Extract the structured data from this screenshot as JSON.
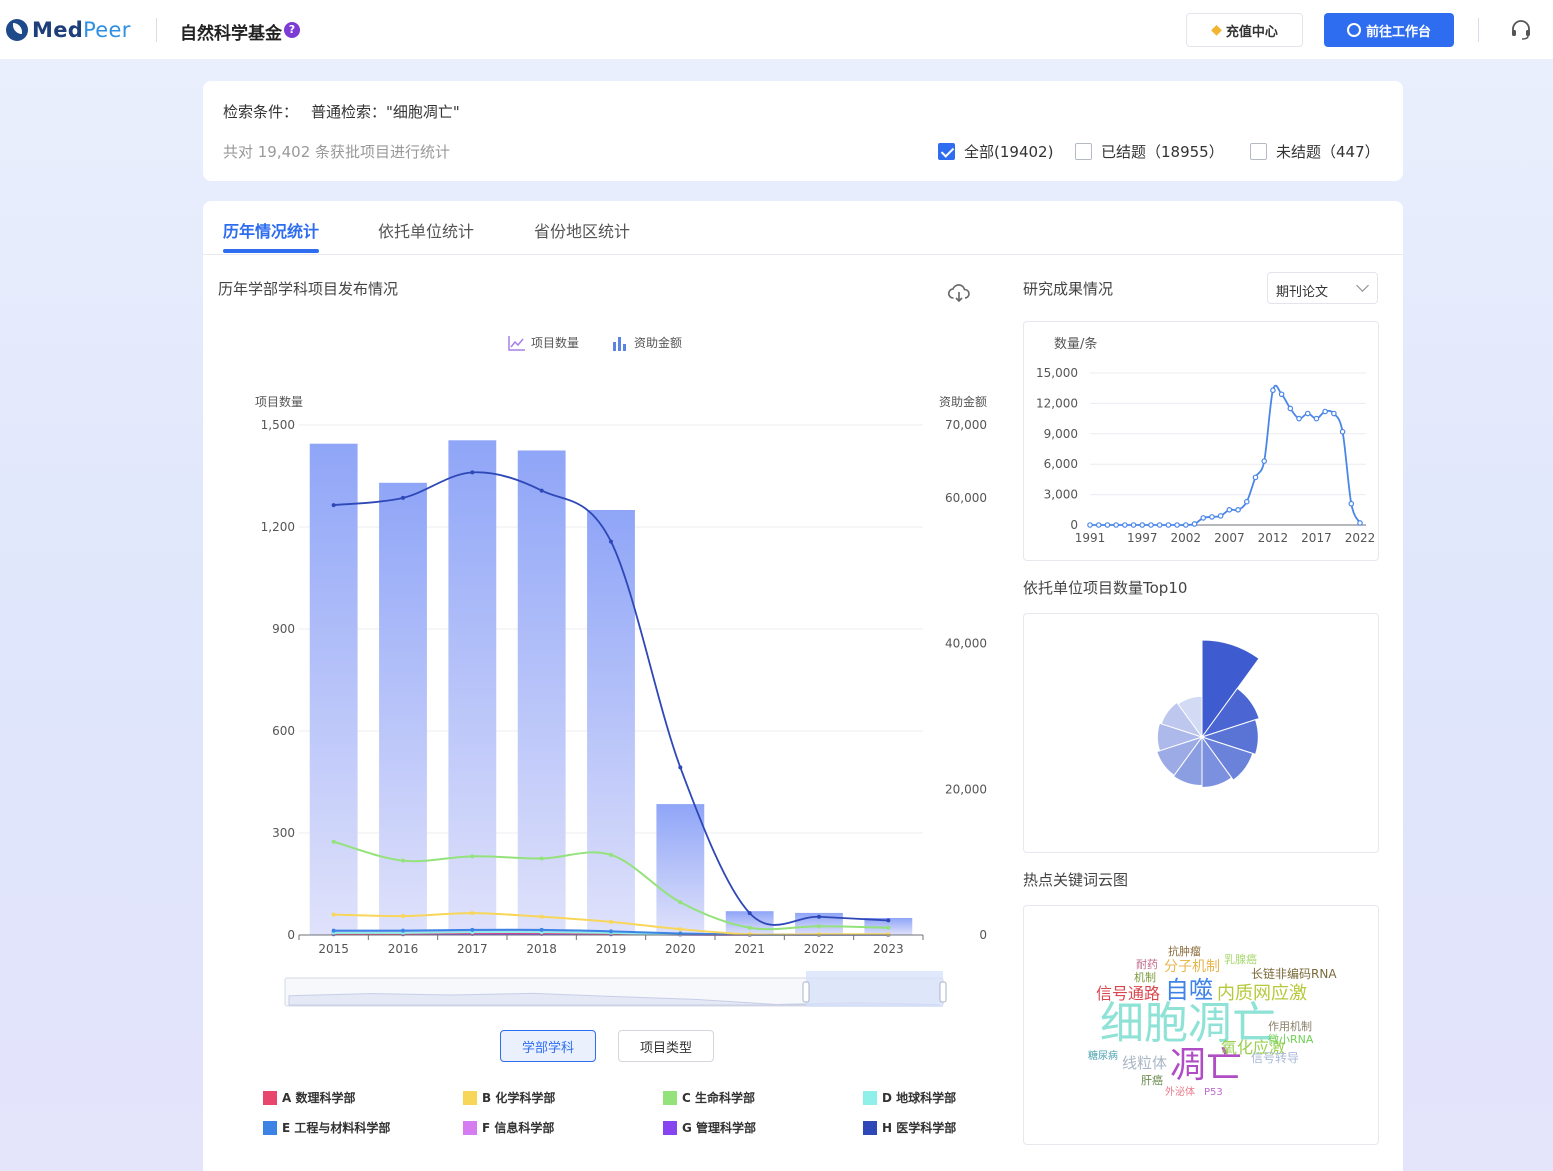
{
  "header": {
    "logo_med": "Med",
    "logo_peer": "Peer",
    "app_title": "自然科学基金",
    "help_glyph": "?",
    "recharge_label": "充值中心",
    "workbench_label": "前往工作台"
  },
  "search": {
    "condition_label": "检索条件：",
    "condition_value": "普通检索：\"细胞凋亡\"",
    "stat_text": "共对 19,402 条获批项目进行统计",
    "filters": [
      {
        "label": "全部(19402)",
        "checked": true
      },
      {
        "label": "已结题（18955）",
        "checked": false
      },
      {
        "label": "未结题（447）",
        "checked": false
      }
    ]
  },
  "tabs": [
    {
      "label": "历年情况统计",
      "active": true
    },
    {
      "label": "依托单位统计",
      "active": false
    },
    {
      "label": "省份地区统计",
      "active": false
    }
  ],
  "main_chart": {
    "section_title": "历年学部学科项目发布情况",
    "legend_count": "项目数量",
    "legend_funding": "资助金额",
    "buttons": {
      "discipline": "学部学科",
      "project_type": "项目类型"
    },
    "disciplines": [
      {
        "label": "A 数理科学部",
        "color": "#e8466c"
      },
      {
        "label": "B 化学科学部",
        "color": "#f7d65a"
      },
      {
        "label": "C 生命科学部",
        "color": "#93e27a"
      },
      {
        "label": "D 地球科学部",
        "color": "#8ff0ea"
      },
      {
        "label": "E 工程与材料科学部",
        "color": "#3d83e6"
      },
      {
        "label": "F 信息科学部",
        "color": "#d57cf0"
      },
      {
        "label": "G 管理科学部",
        "color": "#8745f0"
      },
      {
        "label": "H 医学科学部",
        "color": "#2f48b8"
      }
    ]
  },
  "chart_data": [
    {
      "type": "bar",
      "categories": [
        "2015",
        "2016",
        "2017",
        "2018",
        "2019",
        "2020",
        "2021",
        "2022",
        "2023"
      ],
      "y_label": "项目数量",
      "y2_label": "资助金额",
      "ylim": [
        0,
        1500
      ],
      "y2lim": [
        0,
        70000
      ],
      "y_ticks": [
        "0",
        "300",
        "600",
        "900",
        "1,200",
        "1,500"
      ],
      "y2_ticks": [
        "0",
        "20,000",
        "40,000",
        "60,000",
        "70,000"
      ],
      "series": [
        {
          "name": "项目数量",
          "type": "bar",
          "values": [
            1445,
            1330,
            1455,
            1425,
            1250,
            385,
            70,
            65,
            50
          ]
        },
        {
          "name": "H 医学科学部",
          "axis": "y2",
          "type": "line",
          "values": [
            59000,
            60000,
            63500,
            61000,
            54000,
            23000,
            3000,
            2500,
            2000
          ]
        },
        {
          "name": "C 生命科学部",
          "axis": "y2",
          "type": "line",
          "values": [
            12800,
            10200,
            10800,
            10500,
            11000,
            4500,
            1000,
            1200,
            1000
          ]
        },
        {
          "name": "B 化学科学部",
          "axis": "y2",
          "type": "line",
          "values": [
            2800,
            2600,
            3000,
            2500,
            1800,
            800,
            100,
            100,
            100
          ]
        },
        {
          "name": "E 工程与材料科学部",
          "axis": "y2",
          "type": "line",
          "values": [
            600,
            600,
            700,
            700,
            500,
            200,
            50,
            50,
            50
          ]
        },
        {
          "name": "D 地球科学部",
          "axis": "y2",
          "type": "line",
          "values": [
            300,
            300,
            400,
            400,
            300,
            100,
            30,
            30,
            30
          ]
        },
        {
          "name": "F 信息科学部",
          "axis": "y2",
          "type": "line",
          "values": [
            400,
            400,
            500,
            500,
            300,
            100,
            30,
            30,
            30
          ]
        },
        {
          "name": "A 数理科学部",
          "axis": "y2",
          "type": "line",
          "values": [
            200,
            200,
            300,
            300,
            200,
            80,
            20,
            20,
            20
          ]
        },
        {
          "name": "G 管理科学部",
          "axis": "y2",
          "type": "line",
          "values": [
            100,
            100,
            150,
            150,
            100,
            50,
            10,
            10,
            10
          ]
        }
      ]
    },
    {
      "type": "line",
      "title": "研究成果情况",
      "ylabel": "数量/条",
      "x": [
        "1991",
        "1992",
        "1993",
        "1994",
        "1995",
        "1996",
        "1997",
        "1998",
        "1999",
        "2000",
        "2001",
        "2002",
        "2003",
        "2004",
        "2005",
        "2006",
        "2007",
        "2008",
        "2009",
        "2010",
        "2011",
        "2012",
        "2013",
        "2014",
        "2015",
        "2016",
        "2017",
        "2018",
        "2019",
        "2020",
        "2021",
        "2022"
      ],
      "x_ticks": [
        "1991",
        "1997",
        "2002",
        "2007",
        "2012",
        "2017",
        "2022"
      ],
      "y_ticks": [
        "0",
        "3,000",
        "6,000",
        "9,000",
        "12,000",
        "15,000"
      ],
      "ylim": [
        0,
        15000
      ],
      "values": [
        0,
        0,
        0,
        0,
        0,
        0,
        0,
        0,
        0,
        0,
        0,
        0,
        100,
        700,
        800,
        900,
        1500,
        1500,
        2300,
        4700,
        6300,
        13300,
        12900,
        11500,
        10500,
        11000,
        10500,
        11200,
        11000,
        9200,
        2100,
        200
      ]
    },
    {
      "type": "pie",
      "title": "依托单位项目数量Top10",
      "variant": "rose",
      "values": [
        100,
        62,
        58,
        55,
        52,
        50,
        49,
        46,
        44,
        42
      ]
    }
  ],
  "right_panel": {
    "research_title": "研究成果情况",
    "dropdown_value": "期刊论文",
    "line_ylabel": "数量/条",
    "top10_title": "依托单位项目数量Top10",
    "wordcloud_title": "热点关键词云图",
    "wordcloud": [
      {
        "text": "细胞凋亡",
        "color": "#8fe3d6"
      },
      {
        "text": "凋亡",
        "color": "#b04cc4"
      },
      {
        "text": "自噬",
        "color": "#3f83e8"
      },
      {
        "text": "信号通路",
        "color": "#d9474e"
      },
      {
        "text": "内质网应激",
        "color": "#b7c93a"
      },
      {
        "text": "分子机制",
        "color": "#e6b74a"
      },
      {
        "text": "氧化应激",
        "color": "#9ad04f"
      },
      {
        "text": "线粒体",
        "color": "#a9b6c6"
      },
      {
        "text": "长链非编码RNA",
        "color": "#7a6a3a"
      },
      {
        "text": "抗肿瘤",
        "color": "#8a6b3b"
      },
      {
        "text": "乳腺癌",
        "color": "#a7d86e"
      },
      {
        "text": "耐药",
        "color": "#c06a8a"
      },
      {
        "text": "机制",
        "color": "#7b9a3c"
      },
      {
        "text": "作用机制",
        "color": "#8a7f6a"
      },
      {
        "text": "微小RNA",
        "color": "#6fd055"
      },
      {
        "text": "信号转导",
        "color": "#a8b8d8"
      },
      {
        "text": "糖尿病",
        "color": "#4aa0b0"
      },
      {
        "text": "肝癌",
        "color": "#6b8a4e"
      },
      {
        "text": "外泌体",
        "color": "#e87a8a"
      },
      {
        "text": "P53",
        "color": "#c06ad0"
      }
    ]
  }
}
